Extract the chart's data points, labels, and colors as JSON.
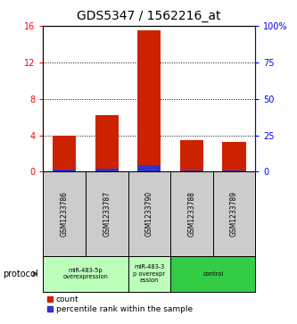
{
  "title": "GDS5347 / 1562216_at",
  "samples": [
    "GSM1233786",
    "GSM1233787",
    "GSM1233790",
    "GSM1233788",
    "GSM1233789"
  ],
  "count_values": [
    4.0,
    6.2,
    15.5,
    3.5,
    3.3
  ],
  "percentile_values": [
    1.6,
    2.0,
    4.3,
    0.8,
    0.7
  ],
  "left_ylim": [
    0,
    16
  ],
  "right_ylim": [
    0,
    100
  ],
  "left_yticks": [
    0,
    4,
    8,
    12,
    16
  ],
  "right_yticks": [
    0,
    25,
    50,
    75,
    100
  ],
  "right_yticklabels": [
    "0",
    "25",
    "50",
    "75",
    "100%"
  ],
  "bar_color": "#cc2200",
  "percentile_color": "#3333cc",
  "title_fontsize": 10,
  "group_boundaries": [
    {
      "start": 0,
      "end": 1,
      "color": "#bbffbb",
      "label": "miR-483-5p\noverexpression"
    },
    {
      "start": 2,
      "end": 2,
      "color": "#bbffbb",
      "label": "miR-483-3\np overexpr\nession"
    },
    {
      "start": 3,
      "end": 4,
      "color": "#33cc44",
      "label": "control"
    }
  ],
  "legend_count_label": "count",
  "legend_percentile_label": "percentile rank within the sample",
  "protocol_label": "protocol",
  "bar_width": 0.55,
  "sample_box_color": "#cccccc",
  "percentile_scale": 0.16
}
